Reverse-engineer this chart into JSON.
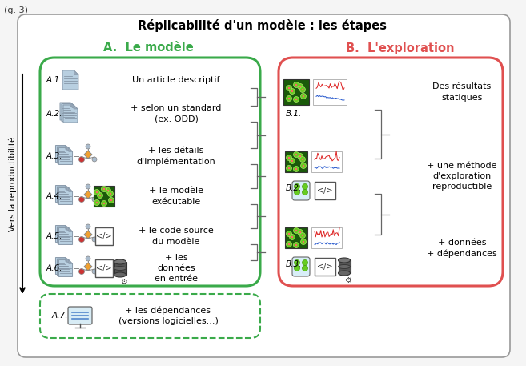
{
  "title": "Réplicabilité d'un modèle : les étapes",
  "fig_label": "(g. 3)",
  "section_a_title": "A.  Le modèle",
  "section_b_title": "B.  L'exploration",
  "section_a_color": "#3aaa4a",
  "section_b_color": "#e05050",
  "background_color": "#f5f5f5",
  "outer_box_color": "#888888",
  "arrow_label": "Vers la reproductibilité",
  "items_a": [
    {
      "label": "A.1.",
      "text": "Un article descriptif"
    },
    {
      "label": "A.2.",
      "text": "+ selon un standard\n(ex. ODD)"
    },
    {
      "label": "A.3.",
      "text": "+ les détails\nd'implémentation"
    },
    {
      "label": "A.4.",
      "text": "+ le modèle\nexécutable"
    },
    {
      "label": "A.5.",
      "text": "+ le code source\ndu modèle"
    },
    {
      "label": "A.6.",
      "text": "+ les\ndonnées\nen entrée"
    }
  ],
  "item_a7": {
    "label": "A.7.",
    "text": "+ les dépendances\n(versions logicielles...)"
  },
  "items_b": [
    {
      "label": "B.1.",
      "text": "Des résultats\nstatiques"
    },
    {
      "label": "B.2.",
      "text": "+ une méthode\nd'exploration\nreproductible"
    },
    {
      "label": "B.3.",
      "text": "+ données\n+ dépendances"
    }
  ],
  "title_fontsize": 10.5,
  "section_fontsize": 10.5,
  "label_fontsize": 7.5,
  "text_fontsize": 8
}
